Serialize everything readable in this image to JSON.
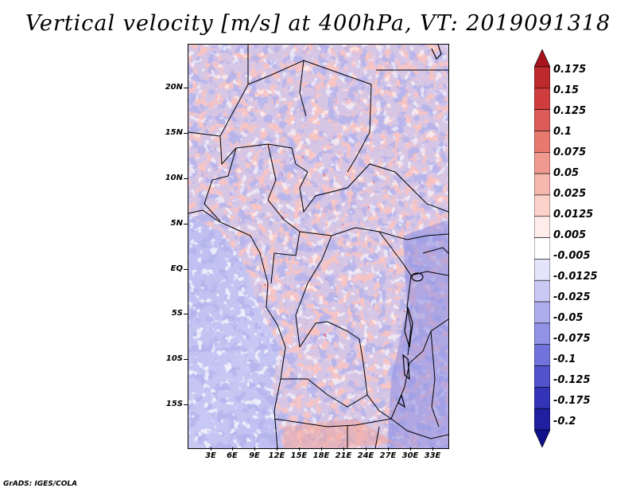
{
  "title": "Vertical velocity [m/s] at 400hPa, VT: 2019091318",
  "credit": "GrADS: IGES/COLA",
  "lat_labels": [
    "20N",
    "15N",
    "10N",
    "5N",
    "EQ",
    "5S",
    "10S",
    "15S"
  ],
  "lon_labels": [
    "3E",
    "6E",
    "9E",
    "12E",
    "15E",
    "18E",
    "21E",
    "24E",
    "27E",
    "30E",
    "33E"
  ],
  "colorbar": {
    "labels": [
      "0.175",
      "0.15",
      "0.125",
      "0.1",
      "0.075",
      "0.05",
      "0.025",
      "0.0125",
      "0.005",
      "-0.005",
      "-0.0125",
      "-0.025",
      "-0.05",
      "-0.075",
      "-0.1",
      "-0.125",
      "-0.175",
      "-0.2"
    ],
    "colors": [
      "#a8141e",
      "#bd2a2e",
      "#cf3c3e",
      "#dc5a57",
      "#e8796f",
      "#f09a8f",
      "#f6b8ae",
      "#fbd3cb",
      "#feecea",
      "#ffffff",
      "#e4e4fa",
      "#c9c9f4",
      "#adadee",
      "#9292e6",
      "#7272dc",
      "#5252cc",
      "#3434b8",
      "#1f1fa0",
      "#10108a"
    ]
  },
  "palette": {
    "background_blue": "#cfcff5",
    "red": "#f2a8a0",
    "blue": "#9c9ce8",
    "border": "#000000"
  }
}
